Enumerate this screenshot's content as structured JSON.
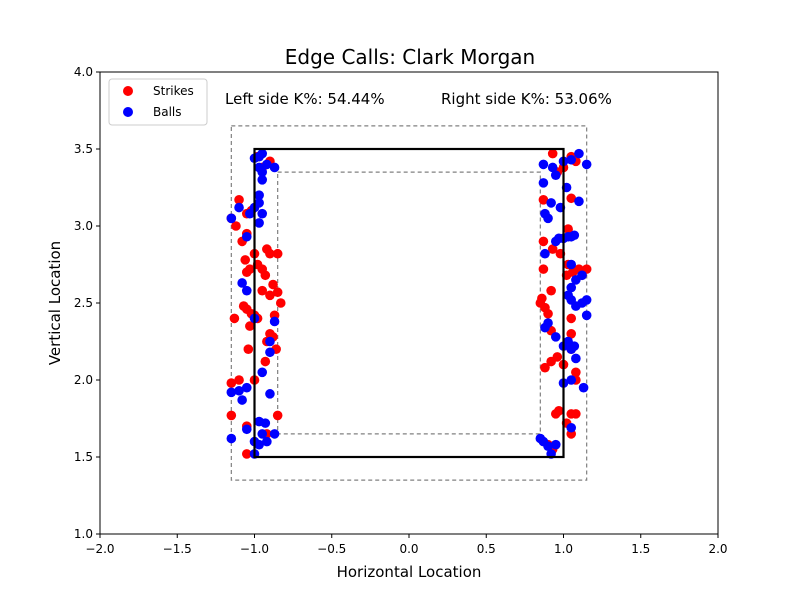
{
  "chart_data": {
    "type": "scatter",
    "title": "Edge Calls: Clark Morgan",
    "xlabel": "Horizontal Location",
    "ylabel": "Vertical Location",
    "xlim": [
      -2.0,
      2.0
    ],
    "ylim": [
      1.0,
      4.0
    ],
    "xticks": [
      "−2.0",
      "−1.5",
      "−1.0",
      "−0.5",
      "0.0",
      "0.5",
      "1.0",
      "1.5",
      "2.0"
    ],
    "yticks": [
      "1.0",
      "1.5",
      "2.0",
      "2.5",
      "3.0",
      "3.5",
      "4.0"
    ],
    "grid": false,
    "legend_position": "top-left",
    "annotations": [
      "Left side K%: 54.44%",
      "Right side K%: 53.06%"
    ],
    "strike_zone": {
      "x": [
        -1.0,
        1.0
      ],
      "y": [
        1.5,
        3.5
      ]
    },
    "outer_edge": {
      "x": [
        -1.15,
        1.15
      ],
      "y": [
        1.35,
        3.65
      ]
    },
    "inner_edge": {
      "x": [
        -0.85,
        0.85
      ],
      "y": [
        1.65,
        3.35
      ]
    },
    "colors": {
      "Strikes": "#ff0000",
      "Balls": "#0000ff",
      "zone": "#000000",
      "edge": "#808080"
    },
    "series": [
      {
        "name": "Strikes",
        "points": [
          [
            -1.15,
            3.05
          ],
          [
            -1.1,
            3.17
          ],
          [
            -1.12,
            3.0
          ],
          [
            -1.08,
            2.9
          ],
          [
            -1.05,
            2.95
          ],
          [
            -1.0,
            2.82
          ],
          [
            -1.06,
            2.78
          ],
          [
            -1.03,
            2.72
          ],
          [
            -1.05,
            2.7
          ],
          [
            -0.98,
            2.75
          ],
          [
            -0.95,
            2.72
          ],
          [
            -0.92,
            2.85
          ],
          [
            -0.9,
            2.82
          ],
          [
            -0.85,
            2.82
          ],
          [
            -0.93,
            2.68
          ],
          [
            -0.88,
            2.62
          ],
          [
            -0.85,
            2.57
          ],
          [
            -0.9,
            2.55
          ],
          [
            -0.83,
            2.5
          ],
          [
            -0.95,
            2.58
          ],
          [
            -1.07,
            2.48
          ],
          [
            -1.05,
            2.46
          ],
          [
            -1.02,
            2.43
          ],
          [
            -1.0,
            2.42
          ],
          [
            -0.98,
            2.4
          ],
          [
            -1.13,
            2.4
          ],
          [
            -1.03,
            2.35
          ],
          [
            -0.87,
            2.42
          ],
          [
            -0.9,
            2.3
          ],
          [
            -0.88,
            2.28
          ],
          [
            -0.92,
            2.25
          ],
          [
            -0.86,
            2.2
          ],
          [
            -0.93,
            2.12
          ],
          [
            -1.04,
            2.2
          ],
          [
            -1.1,
            2.0
          ],
          [
            -1.15,
            1.98
          ],
          [
            -1.0,
            2.0
          ],
          [
            -1.15,
            1.77
          ],
          [
            -0.85,
            1.77
          ],
          [
            -1.05,
            1.7
          ],
          [
            -1.05,
            1.52
          ],
          [
            -0.92,
            1.65
          ],
          [
            -0.98,
            3.45
          ],
          [
            -0.9,
            3.42
          ],
          [
            -1.02,
            3.1
          ],
          [
            -1.05,
            3.08
          ],
          [
            -0.95,
            3.38
          ],
          [
            0.93,
            3.47
          ],
          [
            0.96,
            3.35
          ],
          [
            1.05,
            3.45
          ],
          [
            1.08,
            3.42
          ],
          [
            1.0,
            3.38
          ],
          [
            0.87,
            3.17
          ],
          [
            1.05,
            3.18
          ],
          [
            1.03,
            2.98
          ],
          [
            0.87,
            2.9
          ],
          [
            0.93,
            2.85
          ],
          [
            0.98,
            2.82
          ],
          [
            0.87,
            2.72
          ],
          [
            1.03,
            2.75
          ],
          [
            1.02,
            2.68
          ],
          [
            1.06,
            2.7
          ],
          [
            1.1,
            2.72
          ],
          [
            1.15,
            2.72
          ],
          [
            1.12,
            2.68
          ],
          [
            0.92,
            2.58
          ],
          [
            0.86,
            2.53
          ],
          [
            0.85,
            2.5
          ],
          [
            0.88,
            2.47
          ],
          [
            0.9,
            2.43
          ],
          [
            1.05,
            2.4
          ],
          [
            1.05,
            2.3
          ],
          [
            0.92,
            2.32
          ],
          [
            0.96,
            2.15
          ],
          [
            0.92,
            2.12
          ],
          [
            1.0,
            2.1
          ],
          [
            1.05,
            2.2
          ],
          [
            0.88,
            2.08
          ],
          [
            1.08,
            2.0
          ],
          [
            1.08,
            2.05
          ],
          [
            0.95,
            1.78
          ],
          [
            0.97,
            1.8
          ],
          [
            1.05,
            1.78
          ],
          [
            1.08,
            1.78
          ],
          [
            1.02,
            1.72
          ],
          [
            0.9,
            1.58
          ],
          [
            0.93,
            1.55
          ],
          [
            1.05,
            1.65
          ]
        ]
      },
      {
        "name": "Balls",
        "points": [
          [
            -1.15,
            3.05
          ],
          [
            -1.1,
            3.12
          ],
          [
            -1.03,
            3.08
          ],
          [
            -0.97,
            3.38
          ],
          [
            -0.95,
            3.3
          ],
          [
            -0.97,
            3.2
          ],
          [
            -0.97,
            3.15
          ],
          [
            -0.95,
            3.08
          ],
          [
            -0.97,
            3.02
          ],
          [
            -1.0,
            3.12
          ],
          [
            -0.95,
            3.47
          ],
          [
            -0.97,
            3.45
          ],
          [
            -1.0,
            3.44
          ],
          [
            -0.92,
            3.4
          ],
          [
            -0.87,
            3.38
          ],
          [
            -0.95,
            3.35
          ],
          [
            -1.05,
            2.93
          ],
          [
            -1.08,
            2.63
          ],
          [
            -1.05,
            2.58
          ],
          [
            -1.0,
            2.4
          ],
          [
            -0.87,
            2.38
          ],
          [
            -0.9,
            2.25
          ],
          [
            -0.9,
            2.18
          ],
          [
            -0.95,
            2.05
          ],
          [
            -0.9,
            1.91
          ],
          [
            -1.1,
            1.93
          ],
          [
            -1.15,
            1.92
          ],
          [
            -1.08,
            1.87
          ],
          [
            -1.05,
            1.95
          ],
          [
            -0.97,
            1.73
          ],
          [
            -0.93,
            1.72
          ],
          [
            -0.87,
            1.65
          ],
          [
            -1.0,
            1.6
          ],
          [
            -0.97,
            1.58
          ],
          [
            -0.95,
            1.65
          ],
          [
            -0.92,
            1.6
          ],
          [
            -1.0,
            1.52
          ],
          [
            -1.15,
            1.62
          ],
          [
            -1.05,
            1.68
          ],
          [
            0.87,
            3.4
          ],
          [
            0.93,
            3.38
          ],
          [
            1.0,
            3.42
          ],
          [
            1.05,
            3.43
          ],
          [
            0.95,
            3.33
          ],
          [
            1.1,
            3.47
          ],
          [
            1.15,
            3.4
          ],
          [
            0.87,
            3.28
          ],
          [
            1.02,
            3.25
          ],
          [
            0.92,
            3.15
          ],
          [
            0.98,
            3.12
          ],
          [
            0.88,
            3.08
          ],
          [
            0.9,
            3.05
          ],
          [
            1.1,
            3.16
          ],
          [
            0.97,
            2.92
          ],
          [
            1.0,
            2.92
          ],
          [
            1.03,
            2.93
          ],
          [
            1.05,
            2.93
          ],
          [
            1.07,
            2.94
          ],
          [
            0.95,
            2.9
          ],
          [
            0.88,
            2.82
          ],
          [
            1.05,
            2.75
          ],
          [
            1.08,
            2.65
          ],
          [
            1.12,
            2.68
          ],
          [
            1.15,
            2.52
          ],
          [
            1.12,
            2.5
          ],
          [
            1.05,
            2.6
          ],
          [
            1.03,
            2.55
          ],
          [
            1.05,
            2.52
          ],
          [
            1.08,
            2.48
          ],
          [
            1.15,
            2.42
          ],
          [
            0.9,
            2.37
          ],
          [
            0.88,
            2.34
          ],
          [
            0.95,
            2.28
          ],
          [
            1.0,
            2.22
          ],
          [
            1.05,
            2.2
          ],
          [
            1.03,
            2.25
          ],
          [
            1.07,
            2.22
          ],
          [
            1.08,
            2.14
          ],
          [
            1.0,
            1.98
          ],
          [
            1.05,
            2.0
          ],
          [
            1.13,
            1.95
          ],
          [
            0.87,
            1.6
          ],
          [
            0.92,
            1.52
          ],
          [
            0.9,
            1.57
          ],
          [
            0.95,
            1.58
          ],
          [
            1.05,
            1.69
          ],
          [
            0.85,
            1.62
          ]
        ]
      }
    ]
  }
}
